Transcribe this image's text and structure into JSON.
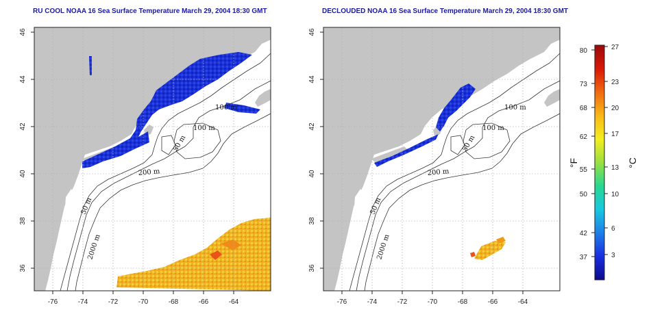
{
  "panels": [
    {
      "title": "RU COOL NOAA 16 Sea Surface Temperature March 29, 2004 18:30 GMT",
      "x_ticks": [
        "-76",
        "-74",
        "-72",
        "-70",
        "-68",
        "-66",
        "-64"
      ],
      "y_ticks": [
        "36",
        "38",
        "40",
        "42",
        "44",
        "46"
      ],
      "contour_labels": [
        "100 m",
        "100 m",
        "50 m",
        "200 m",
        "50 m",
        "2000 m"
      ]
    },
    {
      "title": "DECLOUDED NOAA 16 Sea Surface Temperature March 29, 2004 18:30 GMT",
      "x_ticks": [
        "-76",
        "-74",
        "-72",
        "-70",
        "-68",
        "-66",
        "-64"
      ],
      "y_ticks": [
        "36",
        "38",
        "40",
        "42",
        "44",
        "46"
      ],
      "contour_labels": [
        "100 m",
        "100 m",
        "50 m",
        "200 m",
        "50 m",
        "2000 m"
      ]
    }
  ],
  "colorbar": {
    "f_label": "°F",
    "c_label": "°C",
    "f_ticks": [
      "80",
      "73",
      "68",
      "62",
      "55",
      "50",
      "42",
      "37"
    ],
    "c_ticks": [
      "27",
      "23",
      "20",
      "17",
      "13",
      "10",
      "6",
      "3"
    ],
    "colors": [
      "#0a0a8c",
      "#1a2ee0",
      "#1e7ee8",
      "#18c8e0",
      "#28d890",
      "#9ae040",
      "#f4ee20",
      "#f8b818",
      "#f06a10",
      "#d81808",
      "#9c0a0a"
    ]
  },
  "colors": {
    "land": "#c4c4c4",
    "ocean": "#ffffff",
    "cold_water": "#1c30d8",
    "warm_water": "#f0b020",
    "title": "#1a1aa0"
  }
}
